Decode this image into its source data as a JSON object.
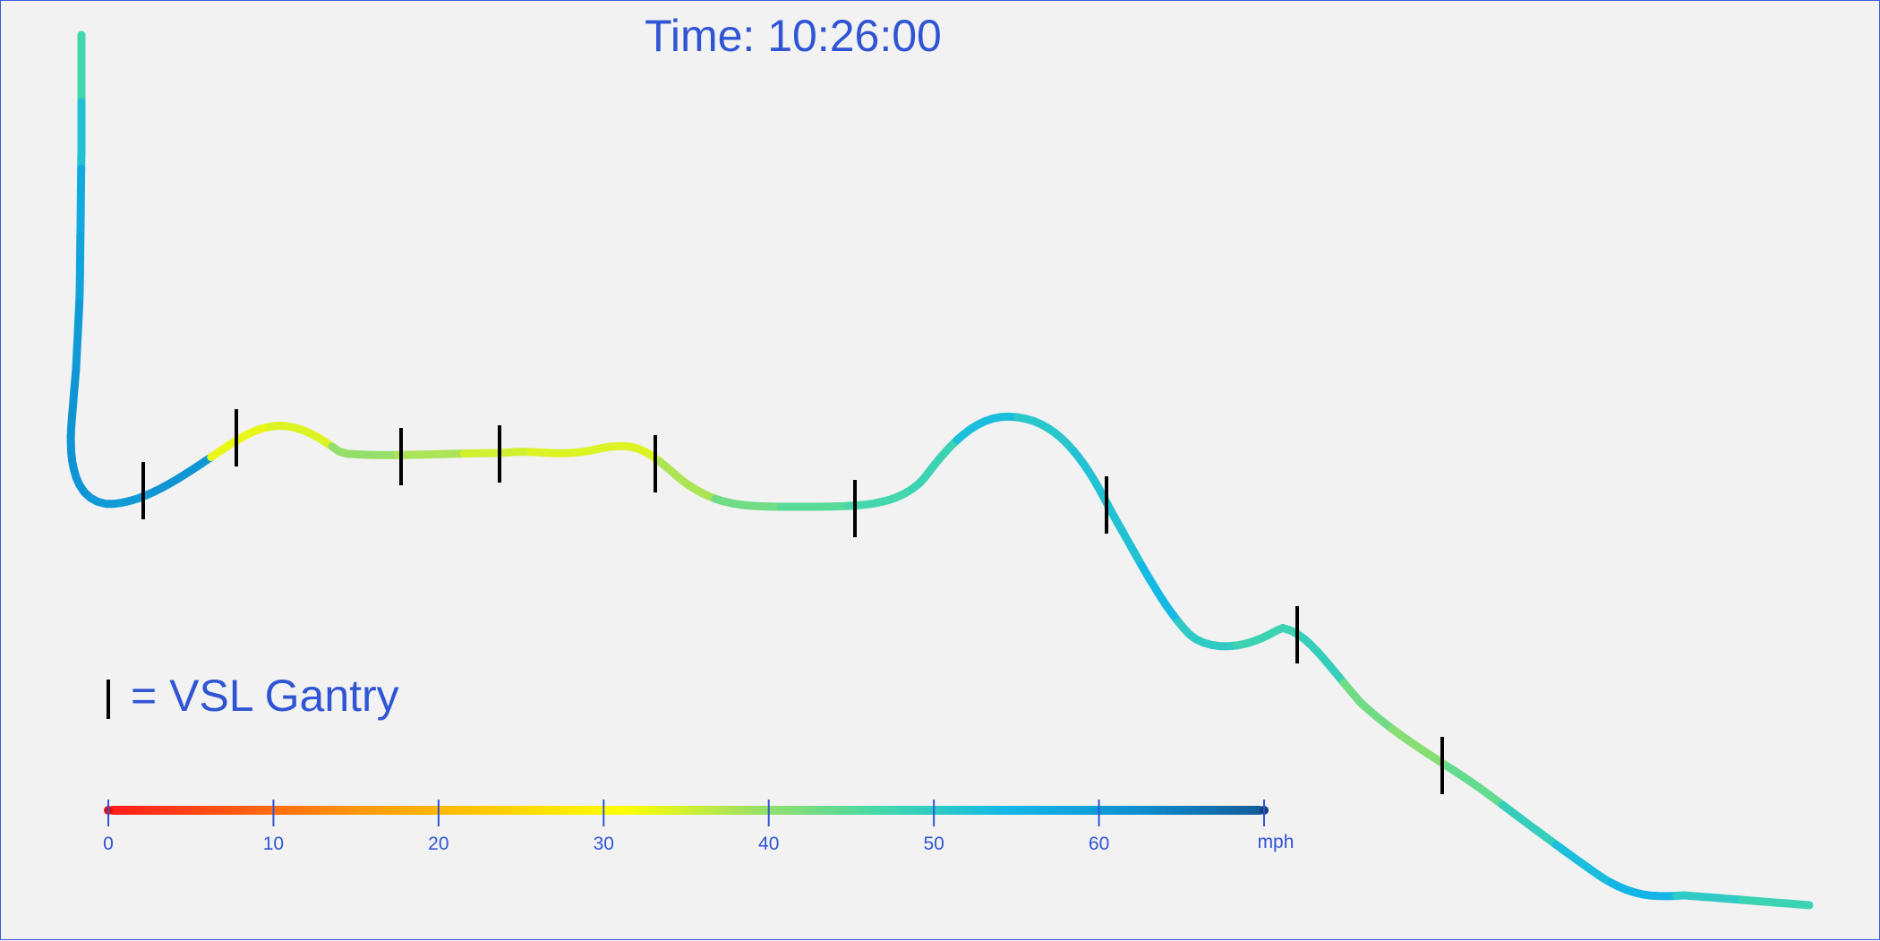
{
  "header": {
    "time_label": "Time: 10:26:00"
  },
  "legend": {
    "gantry_text": "= VSL Gantry"
  },
  "color_scale": {
    "unit": "mph",
    "ticks": [
      "0",
      "10",
      "20",
      "30",
      "40",
      "50",
      "60"
    ],
    "min": 0,
    "max": 70,
    "stops": [
      "#ff1a1a",
      "#ff5a12",
      "#ff9a0a",
      "#ffcc00",
      "#ffff00",
      "#a0e060",
      "#45d8a8",
      "#12b8e8",
      "#0f8fd0",
      "#125c98"
    ]
  },
  "corridor_speeds_mph": [
    47,
    52,
    57,
    58,
    60,
    61,
    61,
    60,
    61,
    33,
    34,
    40,
    38,
    35,
    34,
    34,
    38,
    43,
    45,
    47,
    48,
    53,
    51,
    52,
    52,
    54,
    50,
    48,
    49,
    43,
    41,
    44,
    49,
    53,
    55,
    50,
    48
  ],
  "gantry_count": 9
}
